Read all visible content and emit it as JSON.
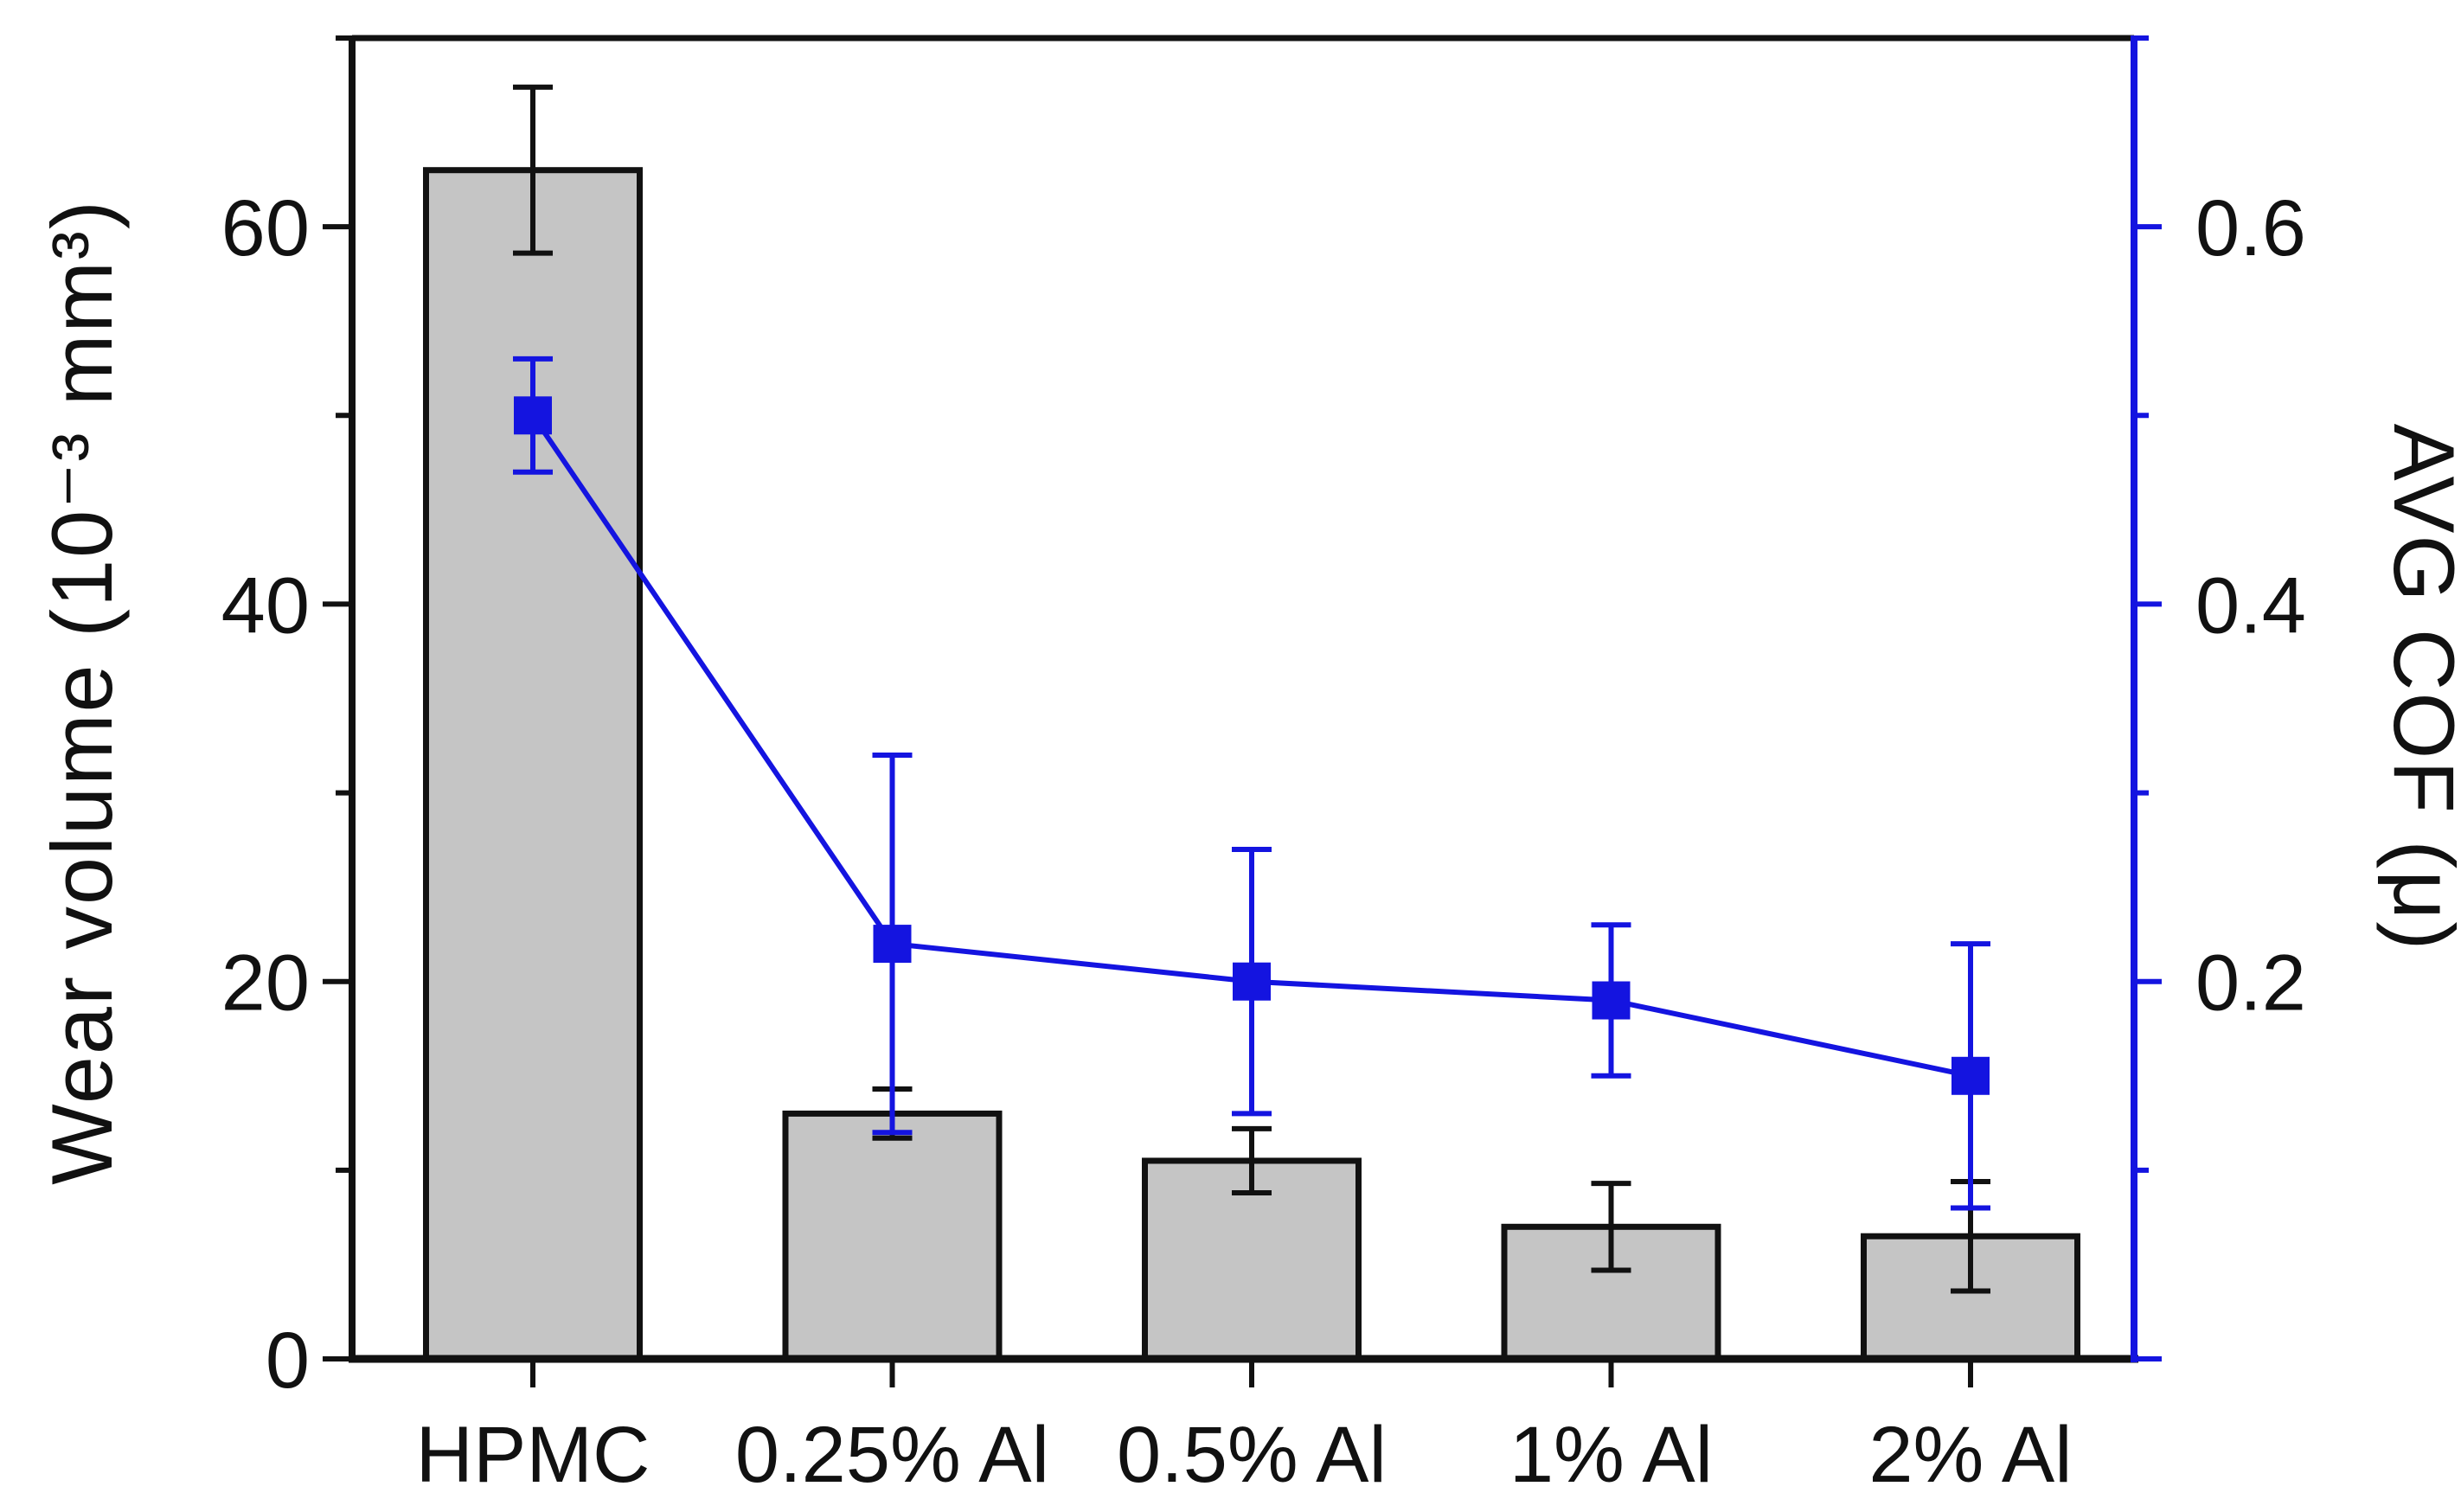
{
  "chart_data": {
    "type": "bar",
    "subtype": "dual-axis bar + line with error bars",
    "title": "",
    "categories": [
      "HPMC",
      "0.25% Al",
      "0.5% Al",
      "1% Al",
      "2% Al"
    ],
    "series": [
      {
        "name": "Wear volume",
        "plot": "bar",
        "axis": "left",
        "values": [
          63,
          13,
          10.5,
          7,
          6.5
        ],
        "errors": [
          4.4,
          1.3,
          1.7,
          2.3,
          2.9
        ],
        "bar_fill": "#c5c5c5",
        "bar_stroke": "#111111"
      },
      {
        "name": "AVG COF",
        "plot": "line",
        "axis": "right",
        "values": [
          0.5,
          0.22,
          0.2,
          0.19,
          0.15
        ],
        "errors": [
          0.03,
          0.1,
          0.07,
          0.04,
          0.07
        ],
        "color": "#1414e0",
        "marker": "square"
      }
    ],
    "left_axis": {
      "label": "Wear volume (10⁻³ mm³)",
      "range": [
        0,
        70
      ],
      "major_ticks": [
        0,
        20,
        40,
        60
      ],
      "tick_labels": [
        "0",
        "20",
        "40",
        "60"
      ],
      "minor_ticks": [
        10,
        30,
        50,
        70
      ],
      "color": "#111111"
    },
    "right_axis": {
      "label": "AVG COF (μ)",
      "range": [
        0,
        0.7
      ],
      "major_ticks": [
        0,
        0.2,
        0.4,
        0.6
      ],
      "tick_labels": [
        "",
        "0.2",
        "0.4",
        "0.6"
      ],
      "minor_ticks": [
        0.1,
        0.3,
        0.5,
        0.7
      ],
      "color": "#1414e0",
      "tick_label_color": "#111111"
    },
    "x_axis": {
      "tick_labels": [
        "HPMC",
        "0.25% Al",
        "0.5% Al",
        "1% Al",
        "2% Al"
      ],
      "color": "#111111"
    },
    "grid": false,
    "legend": false,
    "background": "#ffffff"
  }
}
